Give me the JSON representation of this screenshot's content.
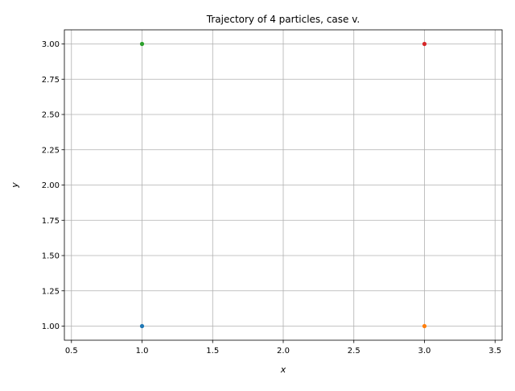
{
  "chart_data": {
    "type": "scatter",
    "title": "Trajectory of 4 particles, case v.",
    "xlabel": "x",
    "ylabel": "y",
    "xlim": [
      0.45,
      3.55
    ],
    "ylim": [
      0.9,
      3.1
    ],
    "xticks": [
      0.5,
      1.0,
      1.5,
      2.0,
      2.5,
      3.0,
      3.5
    ],
    "xtick_labels": [
      "0.5",
      "1.0",
      "1.5",
      "2.0",
      "2.5",
      "3.0",
      "3.5"
    ],
    "yticks": [
      1.0,
      1.25,
      1.5,
      1.75,
      2.0,
      2.25,
      2.5,
      2.75,
      3.0
    ],
    "ytick_labels": [
      "1.00",
      "1.25",
      "1.50",
      "1.75",
      "2.00",
      "2.25",
      "2.50",
      "2.75",
      "3.00"
    ],
    "grid": true,
    "series": [
      {
        "color": "#1f77b4",
        "points": [
          {
            "x": 1.0,
            "y": 1.0
          }
        ]
      },
      {
        "color": "#ff7f0e",
        "points": [
          {
            "x": 3.0,
            "y": 1.0
          }
        ]
      },
      {
        "color": "#2ca02c",
        "points": [
          {
            "x": 1.0,
            "y": 3.0
          }
        ]
      },
      {
        "color": "#d62728",
        "points": [
          {
            "x": 3.0,
            "y": 3.0
          }
        ]
      }
    ]
  }
}
